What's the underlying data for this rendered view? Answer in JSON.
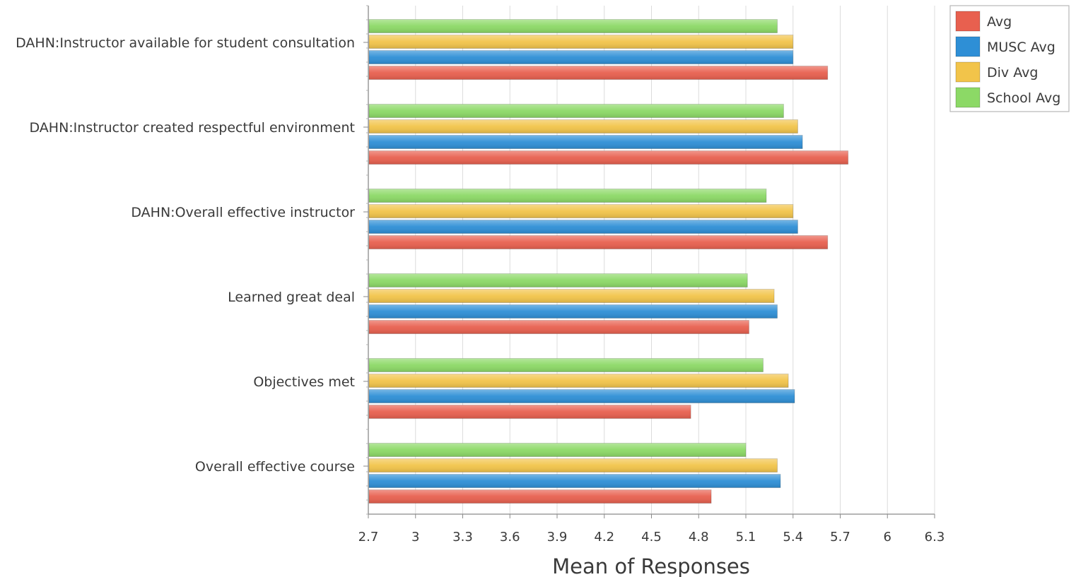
{
  "chart_data": {
    "type": "bar",
    "orientation": "horizontal",
    "categories": [
      "DAHN:Instructor available for student consultation",
      "DAHN:Instructor created respectful environment",
      "DAHN:Overall effective instructor",
      "Learned great deal",
      "Objectives met",
      "Overall effective course"
    ],
    "series": [
      {
        "name": "Avg",
        "color": "#e8604f",
        "values": [
          5.62,
          5.75,
          5.62,
          5.12,
          4.75,
          4.88
        ]
      },
      {
        "name": "MUSC Avg",
        "color": "#2e8fd6",
        "values": [
          5.4,
          5.46,
          5.43,
          5.3,
          5.41,
          5.32
        ]
      },
      {
        "name": "Div Avg",
        "color": "#f2c44a",
        "values": [
          5.4,
          5.43,
          5.4,
          5.28,
          5.37,
          5.3
        ]
      },
      {
        "name": "School Avg",
        "color": "#8cd966",
        "values": [
          5.3,
          5.34,
          5.23,
          5.11,
          5.21,
          5.1
        ]
      }
    ],
    "xlabel": "Mean of Responses",
    "ylabel": "",
    "xlim": [
      2.7,
      6.3
    ],
    "xticks": [
      "2.7",
      "3",
      "3.3",
      "3.6",
      "3.9",
      "4.2",
      "4.5",
      "4.8",
      "5.1",
      "5.4",
      "5.7",
      "6",
      "6.3"
    ],
    "grid": true,
    "legend_position": "top-right"
  }
}
